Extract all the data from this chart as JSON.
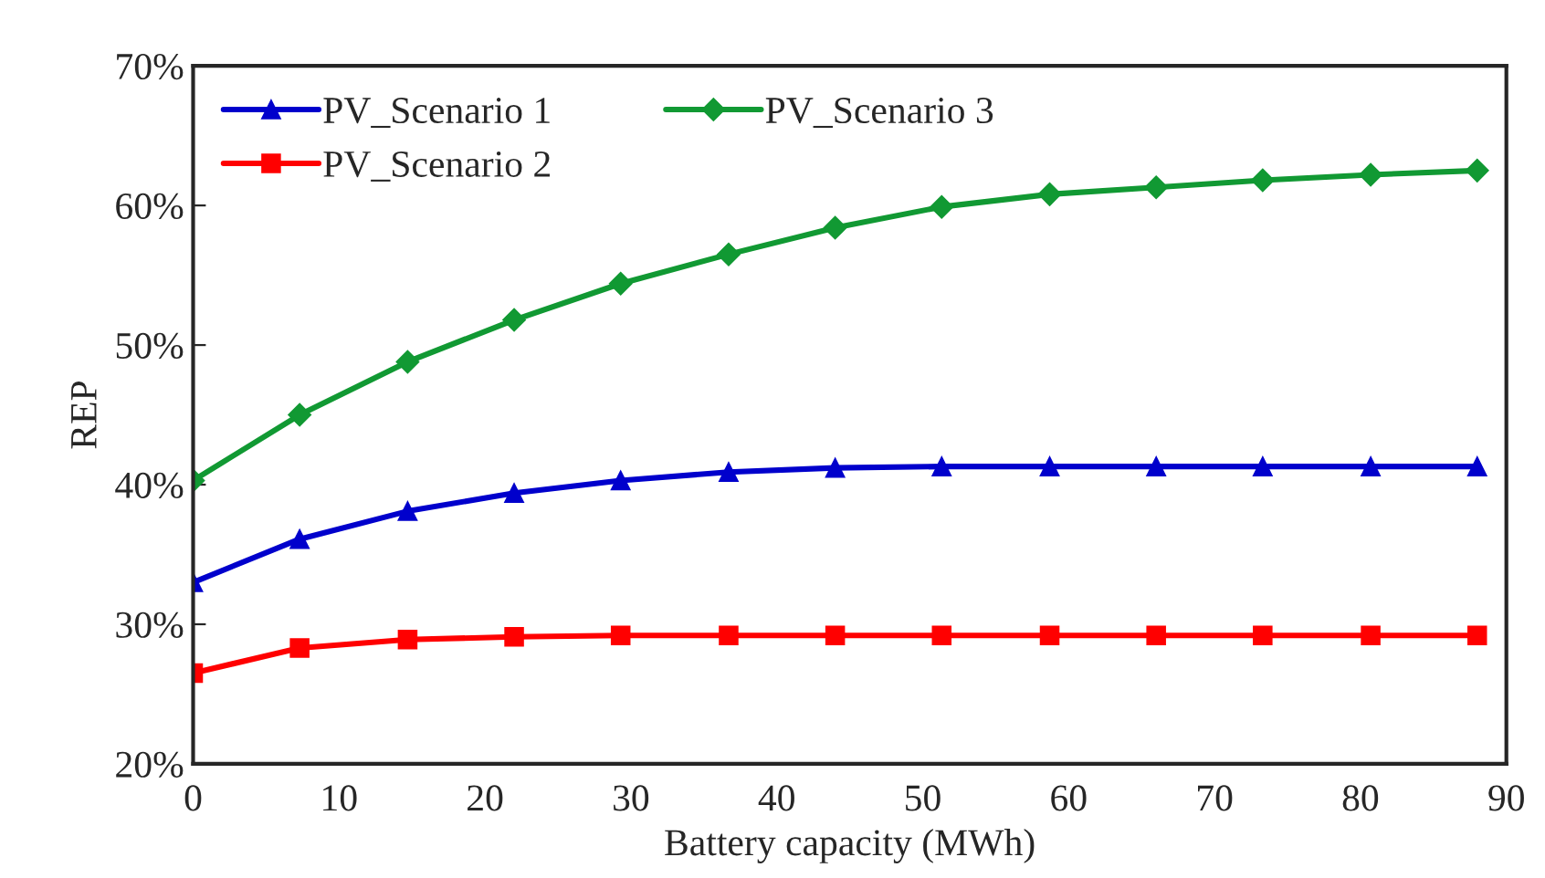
{
  "chart_data": {
    "type": "line",
    "xlabel": "Battery capacity (MWh)",
    "ylabel": "REP",
    "x": [
      0,
      7.3,
      14.7,
      22,
      29.3,
      36.7,
      44,
      51.3,
      58.7,
      66,
      73.3,
      80.7,
      88
    ],
    "series": [
      {
        "name": "PV_Scenario 1",
        "color": "#0000cc",
        "marker": "triangle",
        "values": [
          33,
          36.1,
          38.1,
          39.4,
          40.3,
          40.9,
          41.2,
          41.3,
          41.3,
          41.3,
          41.3,
          41.3,
          41.3
        ]
      },
      {
        "name": "PV_Scenario 2",
        "color": "#ff0000",
        "marker": "square",
        "values": [
          26.5,
          28.3,
          28.9,
          29.1,
          29.2,
          29.2,
          29.2,
          29.2,
          29.2,
          29.2,
          29.2,
          29.2,
          29.2
        ]
      },
      {
        "name": "PV_Scenario 3",
        "color": "#119933",
        "marker": "diamond",
        "values": [
          40.3,
          45,
          48.8,
          51.8,
          54.4,
          56.5,
          58.4,
          59.9,
          60.8,
          61.3,
          61.8,
          62.2,
          62.5
        ]
      }
    ],
    "xlim": [
      0,
      90
    ],
    "xticks": [
      0,
      10,
      20,
      30,
      40,
      50,
      60,
      70,
      80,
      90
    ],
    "ylim": [
      20,
      70
    ],
    "yticks": [
      {
        "value": 20,
        "label": "20%"
      },
      {
        "value": 30,
        "label": "30%"
      },
      {
        "value": 40,
        "label": "40%"
      },
      {
        "value": 50,
        "label": "50%"
      },
      {
        "value": 60,
        "label": "60%"
      },
      {
        "value": 70,
        "label": "70%"
      }
    ],
    "grid": false,
    "legend": "top left",
    "line_style": "solid"
  }
}
